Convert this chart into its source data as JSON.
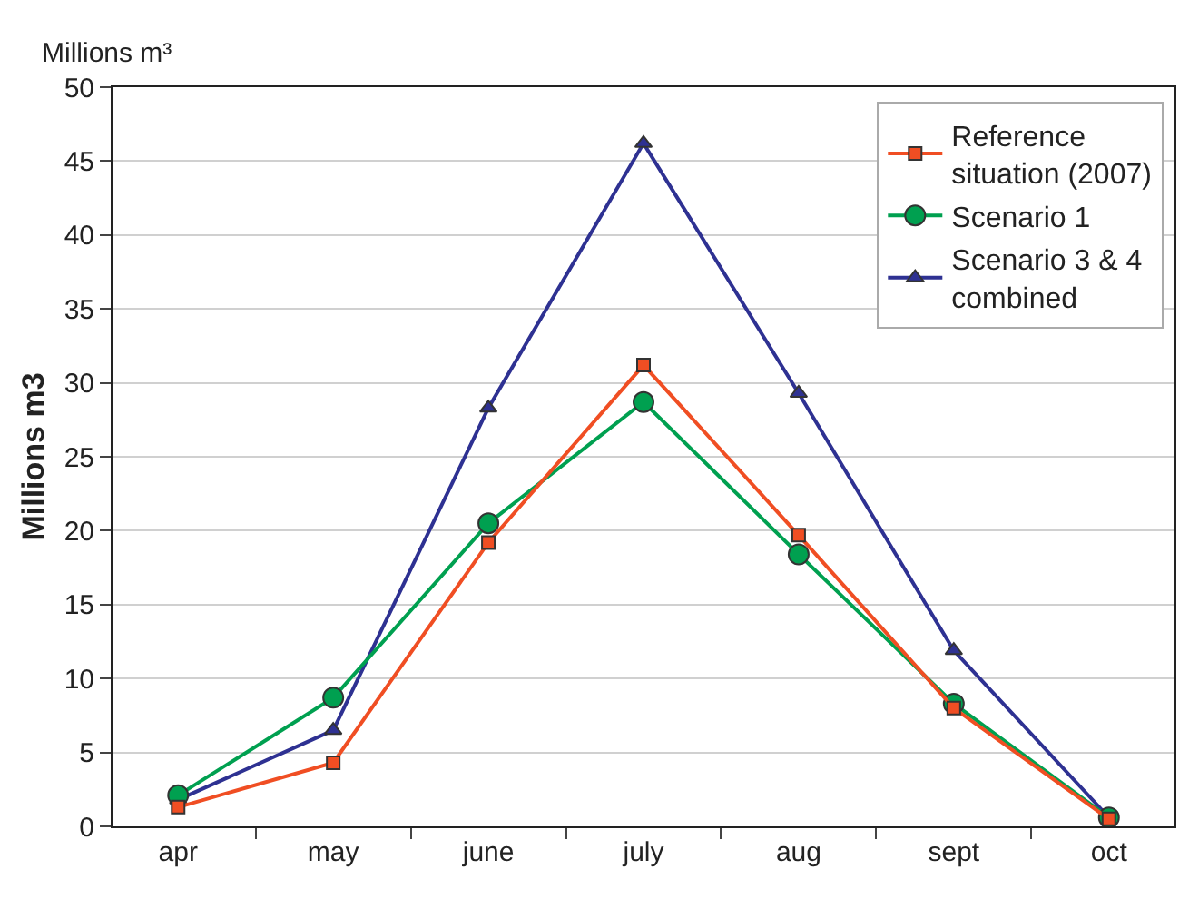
{
  "chart_data": {
    "type": "line",
    "ylabel": "Millions m3",
    "annotations": [
      "Millions m³"
    ],
    "categories": [
      "apr",
      "may",
      "june",
      "july",
      "aug",
      "sept",
      "oct"
    ],
    "series": [
      {
        "name": "Reference situation (2007)",
        "color": "#f04e23",
        "marker": "square",
        "values": [
          1.3,
          4.3,
          19.2,
          31.2,
          19.7,
          8.0,
          0.5
        ]
      },
      {
        "name": "Scenario 1",
        "color": "#00a050",
        "marker": "circle",
        "values": [
          2.1,
          8.7,
          20.5,
          28.7,
          18.4,
          8.3,
          0.6
        ]
      },
      {
        "name": "Scenario 3 & 4 combined",
        "color": "#2e3192",
        "marker": "triangle",
        "values": [
          1.8,
          6.5,
          28.3,
          46.2,
          29.3,
          11.9,
          0.6
        ]
      }
    ],
    "ylim": [
      0,
      50
    ],
    "yticks": [
      0,
      5,
      10,
      15,
      20,
      25,
      30,
      35,
      40,
      45,
      50
    ],
    "grid": "y",
    "legend": "top right",
    "line_style": "solid"
  }
}
